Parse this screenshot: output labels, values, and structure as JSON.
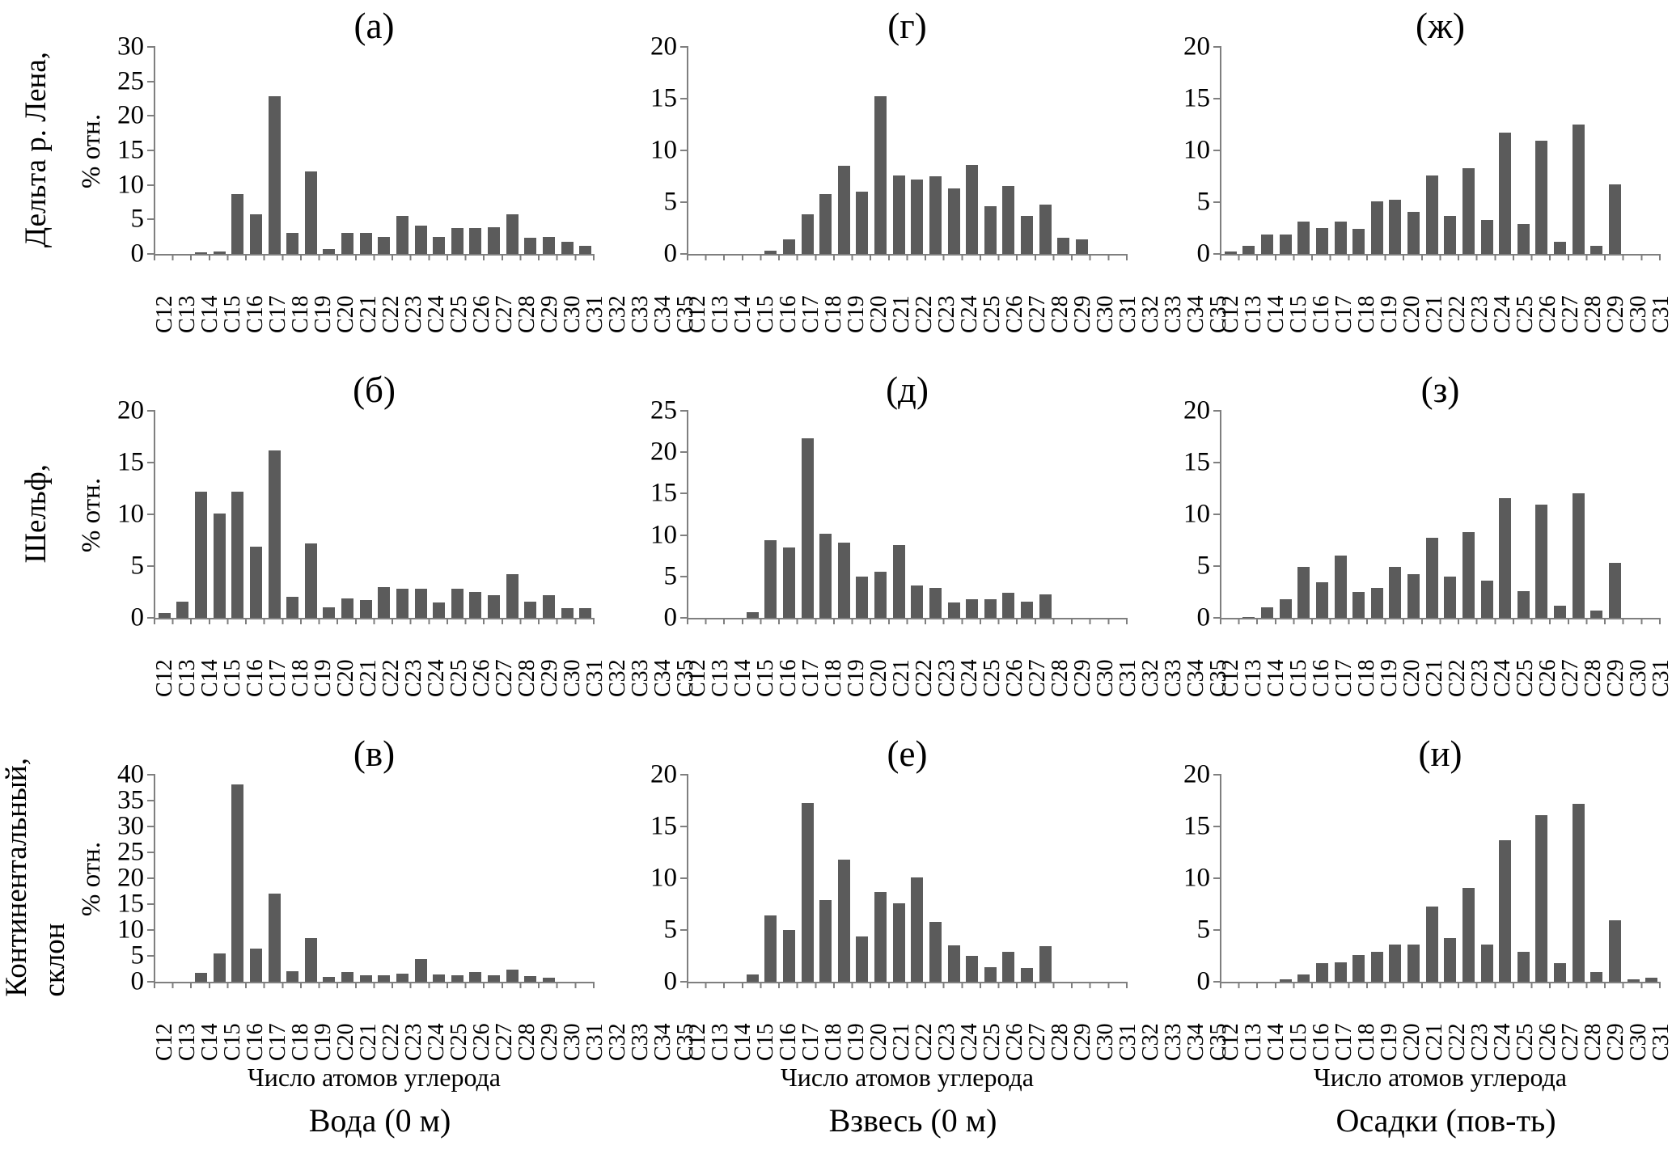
{
  "figure": {
    "row_labels": [
      {
        "line1": "Дельта р. Лена,",
        "line2": ""
      },
      {
        "line1": "Шельф,",
        "line2": ""
      },
      {
        "line1": "Континентальный,",
        "line2": "склон"
      }
    ],
    "column_titles": [
      "Вода (0 м)",
      "Взвесь (0 м)",
      "Осадки (пов-ть)"
    ]
  },
  "chart_data": {
    "type": "bar",
    "grid": false,
    "bar_color": "#5b5b5b",
    "axis_color": "#7f7f7f",
    "xlabel": "Число атомов углерода",
    "ylabel": "% отн.",
    "categories": [
      "C12",
      "C13",
      "C14",
      "C15",
      "C16",
      "C17",
      "C18",
      "C19",
      "C20",
      "C21",
      "C22",
      "C23",
      "C24",
      "C25",
      "C26",
      "C27",
      "C28",
      "C29",
      "C30",
      "C31",
      "C32",
      "C33",
      "C34",
      "C35"
    ],
    "panels": [
      {
        "label": "(а)",
        "row": "Дельта р. Лена",
        "column": "Вода (0 м)",
        "ylim": [
          0,
          30
        ],
        "ystep": 5,
        "show_ylabel": true,
        "show_xlabel": false,
        "values": [
          0,
          0,
          0.2,
          0.4,
          8.7,
          5.8,
          22.8,
          3.0,
          12.0,
          0.7,
          3.0,
          3.0,
          2.5,
          5.5,
          4.1,
          2.5,
          3.8,
          3.8,
          3.9,
          5.8,
          2.4,
          2.5,
          1.8,
          1.2
        ]
      },
      {
        "label": "(г)",
        "row": "Дельта р. Лена",
        "column": "Взвесь (0 м)",
        "ylim": [
          0,
          20
        ],
        "ystep": 5,
        "show_ylabel": false,
        "show_xlabel": false,
        "values": [
          0,
          0,
          0,
          0,
          0.3,
          1.4,
          3.8,
          5.8,
          8.5,
          6.0,
          15.2,
          7.6,
          7.2,
          7.5,
          6.3,
          8.6,
          4.6,
          6.6,
          3.7,
          4.8,
          1.6,
          1.4,
          0,
          0
        ]
      },
      {
        "label": "(ж)",
        "row": "Дельта р. Лена",
        "column": "Осадки (пов-ть)",
        "ylim": [
          0,
          20
        ],
        "ystep": 5,
        "show_ylabel": false,
        "show_xlabel": false,
        "values": [
          0.2,
          0.8,
          1.9,
          1.9,
          3.1,
          2.5,
          3.1,
          2.4,
          5.1,
          5.2,
          4.1,
          7.6,
          3.7,
          8.3,
          3.3,
          11.7,
          2.9,
          10.9,
          1.2,
          12.5,
          0.8,
          6.7,
          0,
          0
        ]
      },
      {
        "label": "(б)",
        "row": "Шельф",
        "column": "Вода (0 м)",
        "ylim": [
          0,
          20
        ],
        "ystep": 5,
        "show_ylabel": true,
        "show_xlabel": false,
        "values": [
          0.5,
          1.6,
          12.2,
          10.1,
          12.2,
          6.9,
          16.2,
          2.0,
          7.2,
          1.0,
          1.9,
          1.7,
          3.0,
          2.8,
          2.8,
          1.5,
          2.8,
          2.5,
          2.2,
          4.2,
          1.6,
          2.2,
          0.9,
          0.9
        ]
      },
      {
        "label": "(д)",
        "row": "Шельф",
        "column": "Взвесь (0 м)",
        "ylim": [
          0,
          25
        ],
        "ystep": 5,
        "show_ylabel": false,
        "show_xlabel": false,
        "values": [
          0,
          0,
          0,
          0.7,
          9.4,
          8.5,
          21.7,
          10.2,
          9.1,
          5.0,
          5.6,
          8.8,
          3.9,
          3.6,
          1.9,
          2.2,
          2.2,
          3.0,
          2.0,
          2.8,
          0,
          0,
          0,
          0
        ]
      },
      {
        "label": "(з)",
        "row": "Шельф",
        "column": "Осадки (пов-ть)",
        "ylim": [
          0,
          20
        ],
        "ystep": 5,
        "show_ylabel": false,
        "show_xlabel": false,
        "values": [
          0,
          0.1,
          1.0,
          1.8,
          4.9,
          3.4,
          6.0,
          2.5,
          2.9,
          4.9,
          4.2,
          7.7,
          4.0,
          8.3,
          3.6,
          11.6,
          2.6,
          10.9,
          1.2,
          12.0,
          0.7,
          5.3,
          0,
          0
        ]
      },
      {
        "label": "(в)",
        "row": "Континентальный склон",
        "column": "Вода (0 м)",
        "ylim": [
          0,
          40
        ],
        "ystep": 5,
        "show_ylabel": true,
        "show_xlabel": true,
        "values": [
          0,
          0,
          1.7,
          5.4,
          38.2,
          6.4,
          17.0,
          2.0,
          8.5,
          0.9,
          1.9,
          1.3,
          1.3,
          1.5,
          4.4,
          1.4,
          1.3,
          1.8,
          1.3,
          2.4,
          1.1,
          0.8,
          0,
          0
        ]
      },
      {
        "label": "(е)",
        "row": "Континентальный склон",
        "column": "Взвесь (0 м)",
        "ylim": [
          0,
          20
        ],
        "ystep": 5,
        "show_ylabel": false,
        "show_xlabel": true,
        "values": [
          0,
          0,
          0,
          0.7,
          6.4,
          5.0,
          17.3,
          7.9,
          11.8,
          4.4,
          8.7,
          7.6,
          10.1,
          5.8,
          3.5,
          2.5,
          1.4,
          2.9,
          1.3,
          3.4,
          0,
          0,
          0,
          0
        ]
      },
      {
        "label": "(и)",
        "row": "Континентальный склон",
        "column": "Осадки (пов-ть)",
        "ylim": [
          0,
          20
        ],
        "ystep": 5,
        "show_ylabel": false,
        "show_xlabel": true,
        "values": [
          0,
          0,
          0,
          0.2,
          0.7,
          1.8,
          1.9,
          2.6,
          2.9,
          3.6,
          3.6,
          7.3,
          4.2,
          9.1,
          3.6,
          13.7,
          2.9,
          16.1,
          1.8,
          17.2,
          0.9,
          5.9,
          0.2,
          0.4
        ]
      }
    ]
  }
}
